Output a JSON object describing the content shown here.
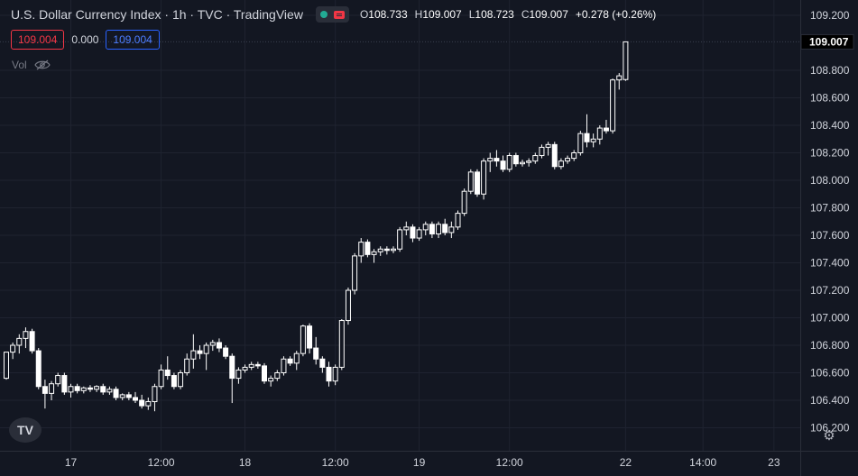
{
  "legend": {
    "symbol_title": "U.S. Dollar Currency Index · 1h · TVC · TradingView",
    "open_label": "O",
    "open": "108.733",
    "high_label": "H",
    "high": "109.007",
    "low_label": "L",
    "low": "108.723",
    "close_label": "C",
    "close": "109.007",
    "change": "+0.278 (+0.26%)",
    "bid": "109.004",
    "spread": "0.000",
    "ask": "109.004",
    "volume_label": "Vol"
  },
  "price_marker": "109.007",
  "logo_text": "TV",
  "icons": {
    "market_status": "green-dot-icon",
    "flag": "flag-icon",
    "visibility": "eye-off-icon",
    "settings": "gear-icon"
  },
  "colors": {
    "background": "#131722",
    "grid": "#1f2330",
    "candle": "#ffffff",
    "text": "#d1d4dc",
    "bid": "#f23645",
    "ask": "#2962ff"
  },
  "chart_data": {
    "type": "candlestick",
    "title": "U.S. Dollar Currency Index · 1h · TVC · TradingView",
    "ylim": [
      106.1,
      109.3
    ],
    "y_ticks": [
      "109.200",
      "109.007",
      "108.800",
      "108.600",
      "108.400",
      "108.200",
      "108.000",
      "107.800",
      "107.600",
      "107.400",
      "107.200",
      "107.000",
      "106.800",
      "106.600",
      "106.400",
      "106.200"
    ],
    "x_ticks": [
      {
        "label": "17",
        "index": 10
      },
      {
        "label": "12:00",
        "index": 24
      },
      {
        "label": "18",
        "index": 37
      },
      {
        "label": "12:00",
        "index": 51
      },
      {
        "label": "19",
        "index": 64
      },
      {
        "label": "12:00",
        "index": 78
      },
      {
        "label": "22",
        "index": 96
      },
      {
        "label": "14:00",
        "index": 108
      },
      {
        "label": "23",
        "index": 119
      }
    ],
    "candles": [
      [
        106.56,
        106.75,
        106.55,
        106.75
      ],
      [
        106.75,
        106.82,
        106.7,
        106.8
      ],
      [
        106.8,
        106.88,
        106.74,
        106.85
      ],
      [
        106.85,
        106.93,
        106.78,
        106.9
      ],
      [
        106.9,
        106.92,
        106.74,
        106.76
      ],
      [
        106.76,
        106.78,
        106.48,
        106.5
      ],
      [
        106.5,
        106.55,
        106.34,
        106.45
      ],
      [
        106.45,
        106.54,
        106.4,
        106.52
      ],
      [
        106.52,
        106.6,
        106.5,
        106.58
      ],
      [
        106.58,
        106.6,
        106.44,
        106.46
      ],
      [
        106.46,
        106.52,
        106.42,
        106.5
      ],
      [
        106.5,
        106.52,
        106.45,
        106.47
      ],
      [
        106.47,
        106.5,
        106.45,
        106.49
      ],
      [
        106.49,
        106.51,
        106.46,
        106.48
      ],
      [
        106.48,
        106.51,
        106.46,
        106.5
      ],
      [
        106.5,
        106.52,
        106.44,
        106.46
      ],
      [
        106.46,
        106.5,
        106.44,
        106.48
      ],
      [
        106.48,
        106.5,
        106.4,
        106.42
      ],
      [
        106.42,
        106.45,
        106.4,
        106.44
      ],
      [
        106.44,
        106.46,
        106.4,
        106.42
      ],
      [
        106.42,
        106.46,
        106.38,
        106.4
      ],
      [
        106.4,
        106.44,
        106.34,
        106.36
      ],
      [
        106.36,
        106.42,
        106.33,
        106.39
      ],
      [
        106.39,
        106.52,
        106.32,
        106.5
      ],
      [
        106.5,
        106.66,
        106.48,
        106.62
      ],
      [
        106.62,
        106.72,
        106.55,
        106.58
      ],
      [
        106.58,
        106.6,
        106.48,
        106.5
      ],
      [
        106.5,
        106.62,
        106.48,
        106.6
      ],
      [
        106.6,
        106.74,
        106.58,
        106.7
      ],
      [
        106.7,
        106.88,
        106.63,
        106.76
      ],
      [
        106.76,
        106.8,
        106.7,
        106.74
      ],
      [
        106.74,
        106.82,
        106.62,
        106.8
      ],
      [
        106.8,
        106.84,
        106.76,
        106.82
      ],
      [
        106.82,
        106.85,
        106.75,
        106.78
      ],
      [
        106.78,
        106.8,
        106.7,
        106.72
      ],
      [
        106.72,
        106.74,
        106.38,
        106.56
      ],
      [
        106.56,
        106.64,
        106.52,
        106.62
      ],
      [
        106.62,
        106.66,
        106.6,
        106.64
      ],
      [
        106.64,
        106.68,
        106.62,
        106.66
      ],
      [
        106.66,
        106.68,
        106.63,
        106.65
      ],
      [
        106.65,
        106.67,
        106.52,
        106.54
      ],
      [
        106.54,
        106.58,
        106.5,
        106.56
      ],
      [
        106.56,
        106.62,
        106.54,
        106.6
      ],
      [
        106.6,
        106.72,
        106.58,
        106.7
      ],
      [
        106.7,
        106.72,
        106.65,
        106.67
      ],
      [
        106.67,
        106.76,
        106.62,
        106.74
      ],
      [
        106.74,
        106.95,
        106.72,
        106.94
      ],
      [
        106.94,
        106.96,
        106.74,
        106.78
      ],
      [
        106.78,
        106.86,
        106.66,
        106.7
      ],
      [
        106.7,
        106.72,
        106.6,
        106.64
      ],
      [
        106.64,
        106.68,
        106.5,
        106.54
      ],
      [
        106.54,
        106.66,
        106.51,
        106.64
      ],
      [
        106.64,
        106.99,
        106.62,
        106.98
      ],
      [
        106.98,
        107.22,
        106.95,
        107.2
      ],
      [
        107.2,
        107.47,
        107.17,
        107.45
      ],
      [
        107.45,
        107.58,
        107.4,
        107.55
      ],
      [
        107.55,
        107.57,
        107.44,
        107.46
      ],
      [
        107.46,
        107.5,
        107.4,
        107.48
      ],
      [
        107.48,
        107.52,
        107.45,
        107.5
      ],
      [
        107.5,
        107.52,
        107.46,
        107.49
      ],
      [
        107.49,
        107.52,
        107.47,
        107.5
      ],
      [
        107.5,
        107.66,
        107.48,
        107.64
      ],
      [
        107.64,
        107.7,
        107.6,
        107.66
      ],
      [
        107.66,
        107.68,
        107.55,
        107.58
      ],
      [
        107.58,
        107.66,
        107.56,
        107.64
      ],
      [
        107.64,
        107.7,
        107.6,
        107.68
      ],
      [
        107.68,
        107.7,
        107.58,
        107.61
      ],
      [
        107.61,
        107.7,
        107.58,
        107.68
      ],
      [
        107.68,
        107.72,
        107.6,
        107.62
      ],
      [
        107.62,
        107.7,
        107.58,
        107.66
      ],
      [
        107.66,
        107.78,
        107.64,
        107.76
      ],
      [
        107.76,
        107.94,
        107.74,
        107.92
      ],
      [
        107.92,
        108.08,
        107.9,
        108.06
      ],
      [
        108.06,
        108.08,
        107.88,
        107.9
      ],
      [
        107.9,
        108.16,
        107.86,
        108.14
      ],
      [
        108.14,
        108.2,
        108.06,
        108.16
      ],
      [
        108.16,
        108.22,
        108.1,
        108.14
      ],
      [
        108.14,
        108.18,
        108.06,
        108.08
      ],
      [
        108.08,
        108.2,
        108.06,
        108.18
      ],
      [
        108.18,
        108.2,
        108.1,
        108.12
      ],
      [
        108.12,
        108.15,
        108.1,
        108.13
      ],
      [
        108.13,
        108.16,
        108.1,
        108.14
      ],
      [
        108.14,
        108.2,
        108.12,
        108.18
      ],
      [
        108.18,
        108.26,
        108.16,
        108.24
      ],
      [
        108.24,
        108.28,
        108.18,
        108.26
      ],
      [
        108.26,
        108.28,
        108.08,
        108.1
      ],
      [
        108.1,
        108.16,
        108.08,
        108.14
      ],
      [
        108.14,
        108.18,
        108.12,
        108.16
      ],
      [
        108.16,
        108.22,
        108.14,
        108.2
      ],
      [
        108.2,
        108.36,
        108.18,
        108.34
      ],
      [
        108.34,
        108.48,
        108.24,
        108.28
      ],
      [
        108.28,
        108.34,
        108.24,
        108.3
      ],
      [
        108.3,
        108.4,
        108.26,
        108.38
      ],
      [
        108.38,
        108.44,
        108.34,
        108.36
      ],
      [
        108.36,
        108.74,
        108.34,
        108.73
      ],
      [
        108.73,
        108.78,
        108.66,
        108.76
      ],
      [
        108.733,
        109.007,
        108.723,
        109.007
      ]
    ]
  }
}
